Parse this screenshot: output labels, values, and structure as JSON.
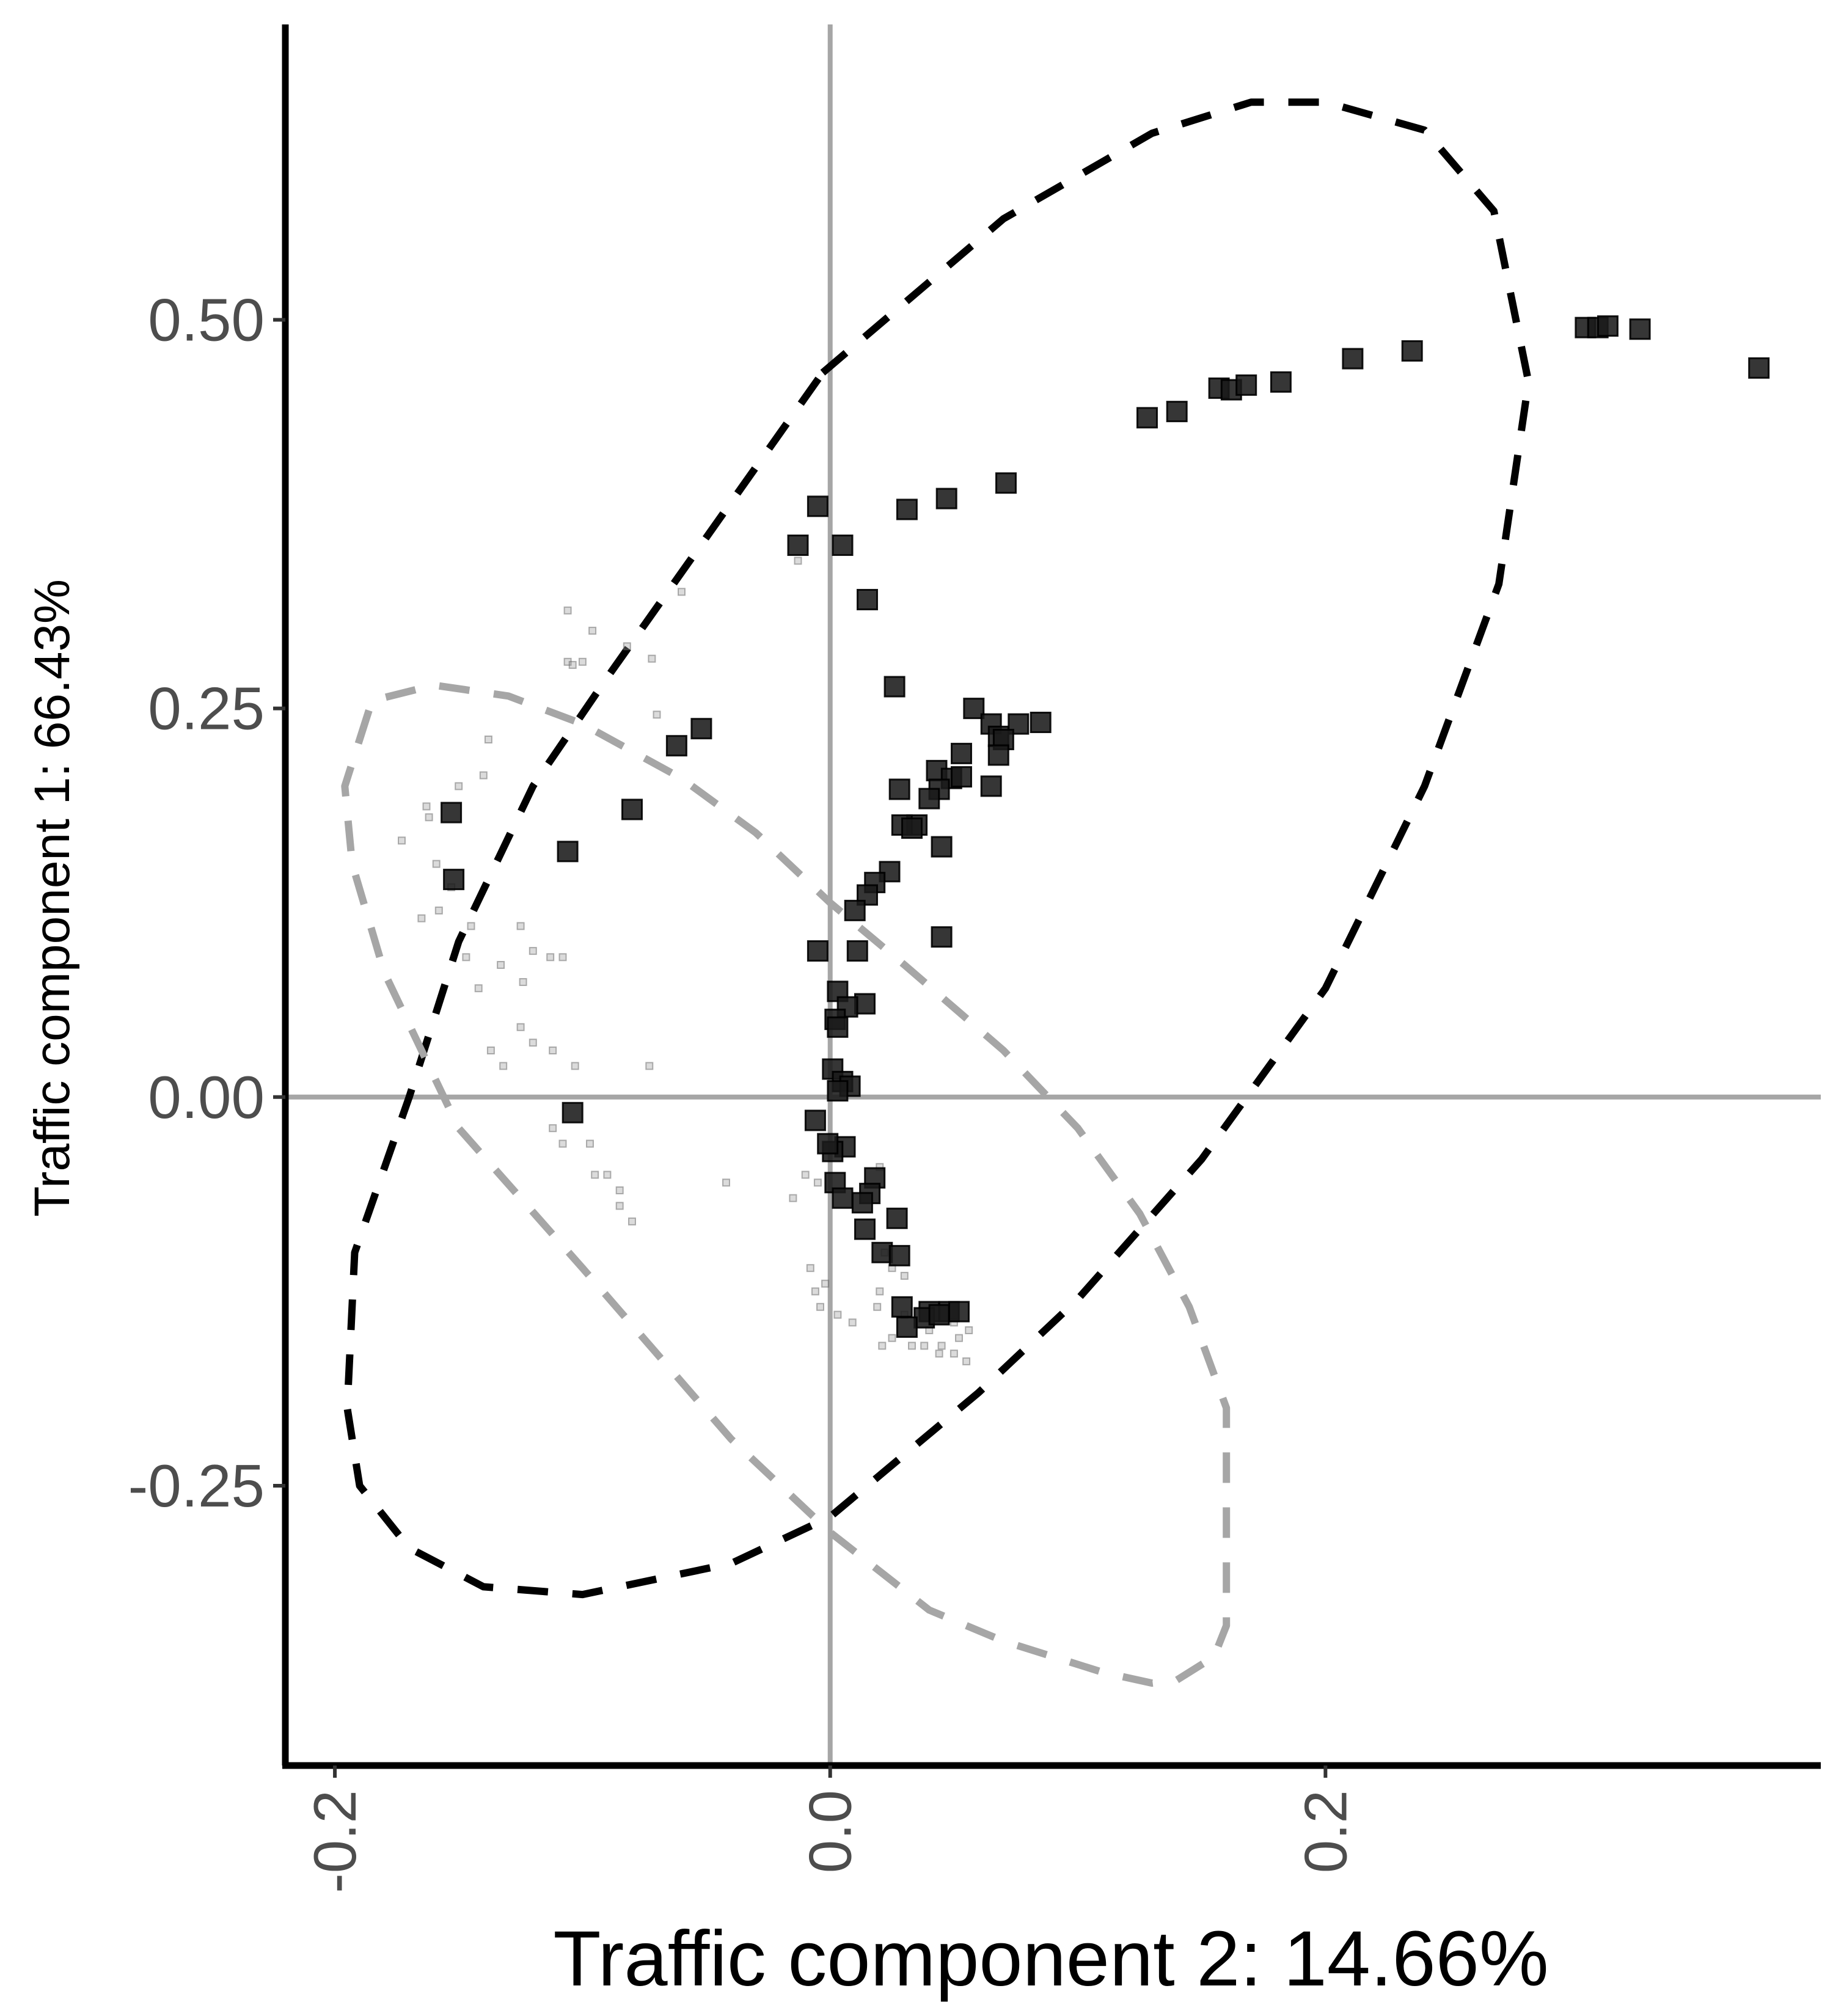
{
  "chart_data": {
    "type": "scatter",
    "title": "",
    "xlabel": "Traffic component 2: 14.66%",
    "ylabel": "Traffic component 1: 66.43%",
    "xlim": [
      -0.22,
      0.4
    ],
    "ylim": [
      -0.43,
      0.69
    ],
    "x_ticks": [
      -0.2,
      0.0,
      0.2
    ],
    "x_tick_labels": [
      "-0.2",
      "0.0",
      "0.2"
    ],
    "y_ticks": [
      -0.25,
      0.0,
      0.25,
      0.5
    ],
    "y_tick_labels": [
      "-0.25",
      "0.00",
      "0.25",
      "0.50"
    ],
    "reference_lines": {
      "x": 0,
      "y": 0,
      "color": "#a6a6a6"
    },
    "grid": false,
    "legend": "none",
    "series": [
      {
        "marker": "square",
        "color": "#1a1a1a",
        "points": [
          [
            -0.005,
            0.38
          ],
          [
            -0.013,
            0.355
          ],
          [
            0.005,
            0.355
          ],
          [
            0.015,
            0.32
          ],
          [
            0.031,
            0.378
          ],
          [
            0.047,
            0.385
          ],
          [
            0.071,
            0.395
          ],
          [
            0.128,
            0.437
          ],
          [
            0.14,
            0.441
          ],
          [
            0.157,
            0.456
          ],
          [
            0.162,
            0.455
          ],
          [
            0.168,
            0.458
          ],
          [
            0.182,
            0.46
          ],
          [
            0.211,
            0.475
          ],
          [
            0.235,
            0.48
          ],
          [
            0.305,
            0.495
          ],
          [
            0.31,
            0.495
          ],
          [
            0.314,
            0.496
          ],
          [
            0.327,
            0.494
          ],
          [
            0.375,
            0.469
          ],
          [
            0.026,
            0.264
          ],
          [
            0.058,
            0.25
          ],
          [
            0.065,
            0.24
          ],
          [
            0.068,
            0.232
          ],
          [
            0.076,
            0.24
          ],
          [
            0.085,
            0.241
          ],
          [
            0.07,
            0.23
          ],
          [
            0.053,
            0.221
          ],
          [
            0.068,
            0.22
          ],
          [
            0.043,
            0.21
          ],
          [
            0.049,
            0.205
          ],
          [
            0.053,
            0.206
          ],
          [
            0.044,
            0.198
          ],
          [
            0.065,
            0.2
          ],
          [
            0.04,
            0.192
          ],
          [
            0.028,
            0.198
          ],
          [
            0.035,
            0.175
          ],
          [
            0.029,
            0.175
          ],
          [
            0.033,
            0.173
          ],
          [
            0.045,
            0.161
          ],
          [
            0.024,
            0.145
          ],
          [
            0.018,
            0.138
          ],
          [
            0.015,
            0.13
          ],
          [
            0.01,
            0.12
          ],
          [
            0.045,
            0.103
          ],
          [
            -0.005,
            0.094
          ],
          [
            0.011,
            0.094
          ],
          [
            0.003,
            0.068
          ],
          [
            0.014,
            0.06
          ],
          [
            0.007,
            0.058
          ],
          [
            0.002,
            0.05
          ],
          [
            0.003,
            0.045
          ],
          [
            0.001,
            0.018
          ],
          [
            0.005,
            0.01
          ],
          [
            0.008,
            0.007
          ],
          [
            0.003,
            0.004
          ],
          [
            -0.006,
            -0.015
          ],
          [
            0.006,
            -0.032
          ],
          [
            0.001,
            -0.035
          ],
          [
            -0.001,
            -0.03
          ],
          [
            0.002,
            -0.055
          ],
          [
            0.018,
            -0.052
          ],
          [
            0.016,
            -0.062
          ],
          [
            0.013,
            -0.068
          ],
          [
            0.005,
            -0.065
          ],
          [
            0.027,
            -0.078
          ],
          [
            0.014,
            -0.085
          ],
          [
            0.021,
            -0.1
          ],
          [
            0.028,
            -0.102
          ],
          [
            0.029,
            -0.135
          ],
          [
            0.04,
            -0.138
          ],
          [
            0.048,
            -0.138
          ],
          [
            0.038,
            -0.142
          ],
          [
            0.044,
            -0.14
          ],
          [
            0.031,
            -0.148
          ],
          [
            0.052,
            -0.138
          ],
          [
            -0.153,
            0.183
          ],
          [
            -0.152,
            0.14
          ],
          [
            -0.106,
            0.158
          ],
          [
            -0.08,
            0.185
          ],
          [
            -0.062,
            0.226
          ],
          [
            -0.052,
            0.237
          ],
          [
            -0.104,
            -0.01
          ]
        ]
      },
      {
        "marker": "small-square",
        "color": "#999999",
        "points": [
          [
            -0.106,
            0.313
          ],
          [
            -0.106,
            0.28
          ],
          [
            -0.104,
            0.278
          ],
          [
            -0.1,
            0.28
          ],
          [
            -0.096,
            0.3
          ],
          [
            -0.082,
            0.29
          ],
          [
            -0.06,
            0.325
          ],
          [
            -0.072,
            0.282
          ],
          [
            -0.07,
            0.246
          ],
          [
            -0.138,
            0.23
          ],
          [
            -0.14,
            0.207
          ],
          [
            -0.15,
            0.2
          ],
          [
            -0.162,
            0.18
          ],
          [
            -0.163,
            0.187
          ],
          [
            -0.173,
            0.165
          ],
          [
            -0.159,
            0.15
          ],
          [
            -0.153,
            0.135
          ],
          [
            -0.165,
            0.115
          ],
          [
            -0.158,
            0.12
          ],
          [
            -0.145,
            0.11
          ],
          [
            -0.125,
            0.11
          ],
          [
            -0.12,
            0.094
          ],
          [
            -0.113,
            0.09
          ],
          [
            -0.108,
            0.09
          ],
          [
            -0.133,
            0.085
          ],
          [
            -0.124,
            0.074
          ],
          [
            -0.142,
            0.07
          ],
          [
            -0.147,
            0.09
          ],
          [
            -0.12,
            0.035
          ],
          [
            -0.125,
            0.045
          ],
          [
            -0.132,
            0.02
          ],
          [
            -0.137,
            0.03
          ],
          [
            -0.112,
            0.03
          ],
          [
            -0.103,
            0.02
          ],
          [
            -0.073,
            0.02
          ],
          [
            -0.112,
            -0.02
          ],
          [
            -0.108,
            -0.03
          ],
          [
            -0.097,
            -0.03
          ],
          [
            -0.095,
            -0.05
          ],
          [
            -0.09,
            -0.05
          ],
          [
            -0.085,
            -0.06
          ],
          [
            -0.085,
            -0.07
          ],
          [
            -0.08,
            -0.08
          ],
          [
            -0.042,
            -0.055
          ],
          [
            -0.01,
            -0.05
          ],
          [
            -0.005,
            -0.055
          ],
          [
            -0.015,
            -0.065
          ],
          [
            0.02,
            -0.045
          ],
          [
            0.022,
            -0.1
          ],
          [
            0.025,
            -0.11
          ],
          [
            0.03,
            -0.115
          ],
          [
            -0.008,
            -0.11
          ],
          [
            -0.002,
            -0.12
          ],
          [
            -0.006,
            -0.125
          ],
          [
            -0.004,
            -0.135
          ],
          [
            0.003,
            -0.14
          ],
          [
            0.009,
            -0.145
          ],
          [
            0.019,
            -0.135
          ],
          [
            0.02,
            -0.125
          ],
          [
            0.03,
            -0.14
          ],
          [
            0.04,
            -0.15
          ],
          [
            0.045,
            -0.16
          ],
          [
            0.05,
            -0.165
          ],
          [
            0.055,
            -0.17
          ],
          [
            0.052,
            -0.155
          ],
          [
            0.056,
            -0.15
          ],
          [
            0.05,
            -0.145
          ],
          [
            0.044,
            -0.165
          ],
          [
            0.038,
            -0.16
          ],
          [
            0.025,
            -0.155
          ],
          [
            0.033,
            -0.16
          ],
          [
            0.021,
            -0.16
          ],
          [
            -0.013,
            0.345
          ]
        ]
      }
    ],
    "ellipses": [
      {
        "style": "dashed",
        "color": "#000000",
        "path": [
          [
            -0.003,
            0.466
          ],
          [
            0.07,
            0.565
          ],
          [
            0.13,
            0.62
          ],
          [
            0.17,
            0.64
          ],
          [
            0.2,
            0.64
          ],
          [
            0.24,
            0.622
          ],
          [
            0.268,
            0.57
          ],
          [
            0.282,
            0.46
          ],
          [
            0.27,
            0.33
          ],
          [
            0.24,
            0.2
          ],
          [
            0.2,
            0.07
          ],
          [
            0.15,
            -0.04
          ],
          [
            0.1,
            -0.13
          ],
          [
            0.06,
            -0.19
          ],
          [
            0.0,
            -0.27
          ],
          [
            -0.04,
            -0.3
          ],
          [
            -0.1,
            -0.32
          ],
          [
            -0.14,
            -0.315
          ],
          [
            -0.17,
            -0.29
          ],
          [
            -0.19,
            -0.25
          ],
          [
            -0.195,
            -0.2
          ],
          [
            -0.192,
            -0.1
          ],
          [
            -0.17,
            0.0
          ],
          [
            -0.15,
            0.1
          ],
          [
            -0.12,
            0.2
          ],
          [
            -0.09,
            0.27
          ],
          [
            -0.05,
            0.36
          ],
          [
            -0.003,
            0.466
          ]
        ]
      },
      {
        "style": "dashed",
        "color": "#a6a6a6",
        "path": [
          [
            -0.19,
            0.23
          ],
          [
            -0.185,
            0.255
          ],
          [
            -0.16,
            0.265
          ],
          [
            -0.13,
            0.258
          ],
          [
            -0.1,
            0.24
          ],
          [
            -0.06,
            0.205
          ],
          [
            -0.03,
            0.17
          ],
          [
            0.0,
            0.125
          ],
          [
            0.03,
            0.085
          ],
          [
            0.07,
            0.03
          ],
          [
            0.1,
            -0.02
          ],
          [
            0.125,
            -0.075
          ],
          [
            0.145,
            -0.135
          ],
          [
            0.16,
            -0.2
          ],
          [
            0.16,
            -0.34
          ],
          [
            0.155,
            -0.36
          ],
          [
            0.14,
            -0.375
          ],
          [
            0.13,
            -0.377
          ],
          [
            0.11,
            -0.37
          ],
          [
            0.07,
            -0.35
          ],
          [
            0.04,
            -0.33
          ],
          [
            0.0,
            -0.28
          ],
          [
            -0.04,
            -0.22
          ],
          [
            -0.1,
            -0.11
          ],
          [
            -0.15,
            -0.02
          ],
          [
            -0.18,
            0.08
          ],
          [
            -0.193,
            0.15
          ],
          [
            -0.196,
            0.2
          ],
          [
            -0.19,
            0.23
          ]
        ]
      }
    ]
  }
}
